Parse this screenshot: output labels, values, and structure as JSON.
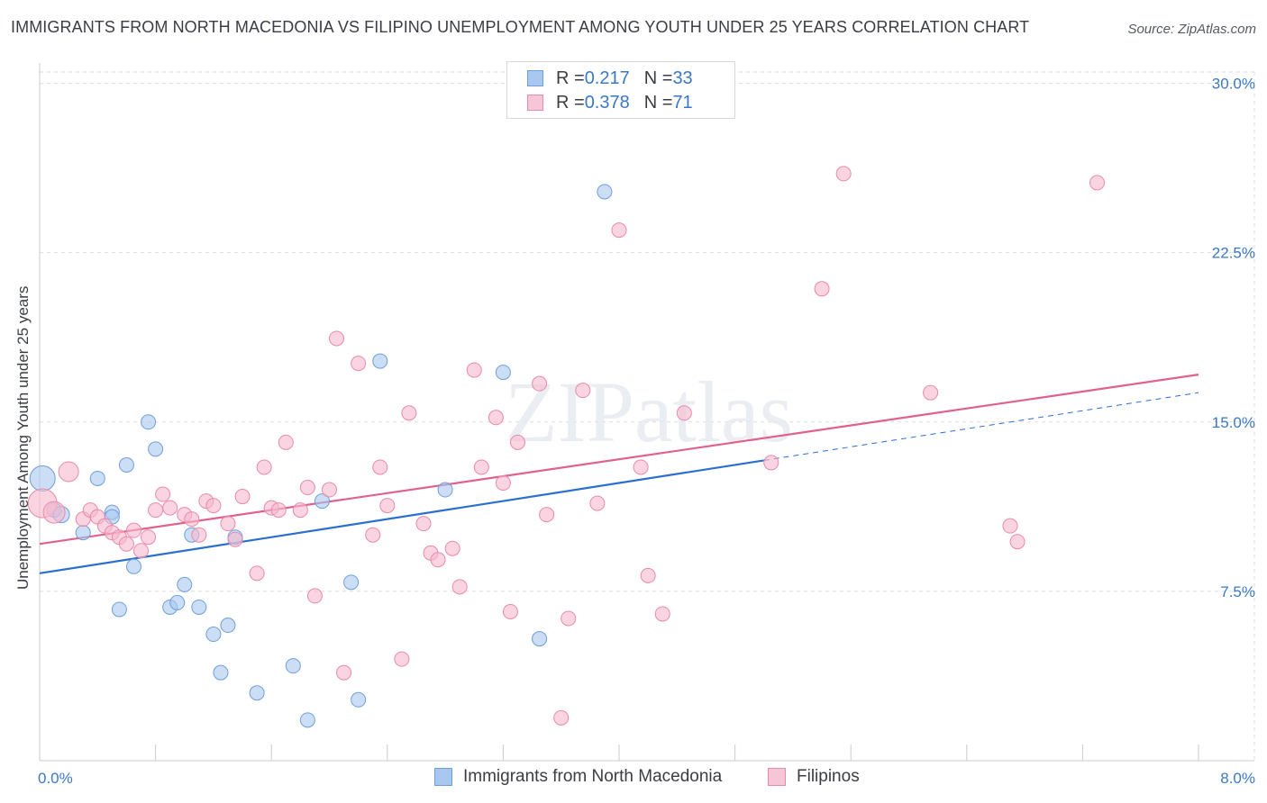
{
  "title": "IMMIGRANTS FROM NORTH MACEDONIA VS FILIPINO UNEMPLOYMENT AMONG YOUTH UNDER 25 YEARS CORRELATION CHART",
  "source": "Source: ZipAtlas.com",
  "watermark": "ZIPatlas",
  "legend": {
    "row1": {
      "r_label": "R = ",
      "r_value": "0.217",
      "n_label": "N = ",
      "n_value": "33"
    },
    "row2": {
      "r_label": "R = ",
      "r_value": "0.378",
      "n_label": "N = ",
      "n_value": "71"
    }
  },
  "bottom_legend": {
    "series1": "Immigrants from North Macedonia",
    "series2": "Filipinos"
  },
  "colors": {
    "blue_fill": "#a9c8f0",
    "blue_stroke": "#6f9fd8",
    "blue_line": "#2a6fcf",
    "pink_fill": "#f6b9cd",
    "pink_stroke": "#e98aa9",
    "pink_line": "#e0628b",
    "tick_label": "#3a78c8",
    "grid": "#dcdde0"
  },
  "chart_data": {
    "type": "scatter",
    "title": "IMMIGRANTS FROM NORTH MACEDONIA VS FILIPINO UNEMPLOYMENT AMONG YOUTH UNDER 25 YEARS CORRELATION CHART",
    "xlabel": "",
    "ylabel": "Unemployment Among Youth under 25 years",
    "xlim": [
      0,
      8
    ],
    "ylim": [
      0,
      30.9
    ],
    "x_tick_labels": [
      {
        "value": 0,
        "label": "0.0%"
      },
      {
        "value": 8,
        "label": "8.0%"
      }
    ],
    "y_tick_labels": [
      {
        "value": 7.5,
        "label": "7.5%"
      },
      {
        "value": 15,
        "label": "15.0%"
      },
      {
        "value": 22.5,
        "label": "22.5%"
      },
      {
        "value": 30,
        "label": "30.0%"
      }
    ],
    "series": [
      {
        "name": "Immigrants from North Macedonia",
        "color": "blue",
        "R": 0.217,
        "N": 33,
        "trend": {
          "x0": 0,
          "y0": 8.3,
          "x1": 5.0,
          "y1": 13.3,
          "dash_x1": 8.0,
          "dash_y1": 16.3
        },
        "points": [
          [
            0.02,
            12.5,
            14
          ],
          [
            0.1,
            11.1,
            8
          ],
          [
            0.15,
            10.9,
            9
          ],
          [
            0.3,
            10.1,
            8
          ],
          [
            0.4,
            12.5,
            8
          ],
          [
            0.5,
            11.0,
            8
          ],
          [
            0.5,
            10.8,
            8
          ],
          [
            0.55,
            6.7,
            8
          ],
          [
            0.6,
            13.1,
            8
          ],
          [
            0.65,
            8.6,
            8
          ],
          [
            0.75,
            15.0,
            8
          ],
          [
            0.8,
            13.8,
            8
          ],
          [
            0.9,
            6.8,
            8
          ],
          [
            0.95,
            7.0,
            8
          ],
          [
            1.0,
            7.8,
            8
          ],
          [
            1.05,
            10.0,
            8
          ],
          [
            1.1,
            6.8,
            8
          ],
          [
            1.2,
            5.6,
            8
          ],
          [
            1.25,
            3.9,
            8
          ],
          [
            1.3,
            6.0,
            8
          ],
          [
            1.35,
            9.9,
            8
          ],
          [
            1.5,
            3.0,
            8
          ],
          [
            1.75,
            4.2,
            8
          ],
          [
            1.85,
            1.8,
            8
          ],
          [
            1.95,
            11.5,
            8
          ],
          [
            2.15,
            7.9,
            8
          ],
          [
            2.2,
            2.7,
            8
          ],
          [
            2.35,
            17.7,
            8
          ],
          [
            2.8,
            12.0,
            8
          ],
          [
            3.2,
            17.2,
            8
          ],
          [
            3.45,
            5.4,
            8
          ],
          [
            3.9,
            25.2,
            8
          ]
        ]
      },
      {
        "name": "Filipinos",
        "color": "pink",
        "R": 0.378,
        "N": 71,
        "trend": {
          "x0": 0,
          "y0": 9.6,
          "x1": 8.0,
          "y1": 17.1
        },
        "points": [
          [
            0.02,
            11.4,
            16
          ],
          [
            0.1,
            11.0,
            12
          ],
          [
            0.2,
            12.8,
            11
          ],
          [
            0.3,
            10.7,
            8
          ],
          [
            0.35,
            11.1,
            8
          ],
          [
            0.4,
            10.8,
            8
          ],
          [
            0.45,
            10.4,
            8
          ],
          [
            0.5,
            10.1,
            8
          ],
          [
            0.55,
            9.9,
            8
          ],
          [
            0.6,
            9.6,
            8
          ],
          [
            0.65,
            10.2,
            8
          ],
          [
            0.7,
            9.3,
            8
          ],
          [
            0.75,
            9.9,
            8
          ],
          [
            0.8,
            11.1,
            8
          ],
          [
            0.85,
            11.8,
            8
          ],
          [
            0.9,
            11.2,
            8
          ],
          [
            1.0,
            10.9,
            8
          ],
          [
            1.05,
            10.7,
            8
          ],
          [
            1.1,
            10.0,
            8
          ],
          [
            1.15,
            11.5,
            8
          ],
          [
            1.2,
            11.3,
            8
          ],
          [
            1.3,
            10.5,
            8
          ],
          [
            1.35,
            9.8,
            8
          ],
          [
            1.4,
            11.7,
            8
          ],
          [
            1.5,
            8.3,
            8
          ],
          [
            1.55,
            13.0,
            8
          ],
          [
            1.6,
            11.2,
            8
          ],
          [
            1.65,
            11.1,
            8
          ],
          [
            1.7,
            14.1,
            8
          ],
          [
            1.8,
            11.1,
            8
          ],
          [
            1.85,
            12.1,
            8
          ],
          [
            1.9,
            7.3,
            8
          ],
          [
            2.0,
            12.0,
            8
          ],
          [
            2.05,
            18.7,
            8
          ],
          [
            2.1,
            3.9,
            8
          ],
          [
            2.2,
            17.6,
            8
          ],
          [
            2.3,
            10.0,
            8
          ],
          [
            2.35,
            13.0,
            8
          ],
          [
            2.4,
            11.3,
            8
          ],
          [
            2.5,
            4.5,
            8
          ],
          [
            2.55,
            15.4,
            8
          ],
          [
            2.65,
            10.5,
            8
          ],
          [
            2.7,
            9.2,
            8
          ],
          [
            2.75,
            8.9,
            8
          ],
          [
            2.85,
            9.4,
            8
          ],
          [
            2.9,
            7.7,
            8
          ],
          [
            3.0,
            17.3,
            8
          ],
          [
            3.05,
            13.0,
            8
          ],
          [
            3.15,
            15.2,
            8
          ],
          [
            3.2,
            12.3,
            8
          ],
          [
            3.25,
            6.6,
            8
          ],
          [
            3.3,
            14.1,
            8
          ],
          [
            3.45,
            16.7,
            8
          ],
          [
            3.5,
            10.9,
            8
          ],
          [
            3.6,
            1.9,
            8
          ],
          [
            3.65,
            6.3,
            8
          ],
          [
            3.75,
            16.4,
            8
          ],
          [
            3.85,
            11.4,
            8
          ],
          [
            4.0,
            23.5,
            8
          ],
          [
            4.15,
            13.0,
            8
          ],
          [
            4.2,
            8.2,
            8
          ],
          [
            4.3,
            6.5,
            8
          ],
          [
            4.45,
            15.4,
            8
          ],
          [
            5.05,
            13.2,
            8
          ],
          [
            5.4,
            20.9,
            8
          ],
          [
            5.55,
            26.0,
            8
          ],
          [
            6.15,
            16.3,
            8
          ],
          [
            6.7,
            10.4,
            8
          ],
          [
            6.75,
            9.7,
            8
          ],
          [
            7.3,
            25.6,
            8
          ]
        ]
      }
    ]
  }
}
